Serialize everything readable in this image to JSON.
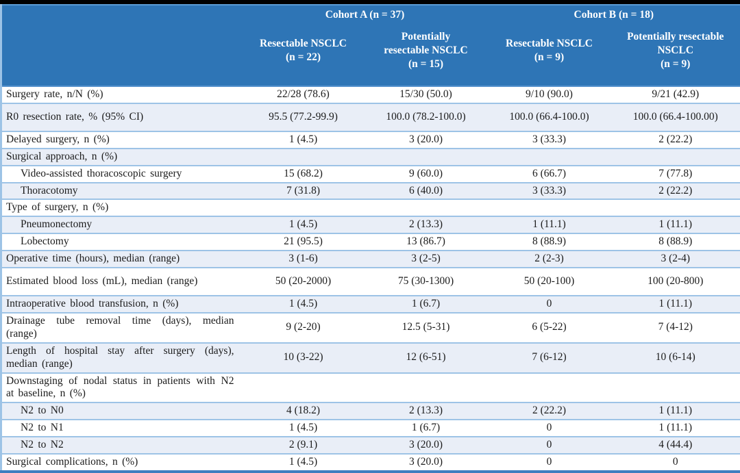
{
  "colors": {
    "header_bg": "#2E75B6",
    "header_highlight": "#5B9BD5",
    "header_underline": "#5793CE",
    "line": "#9DC3E6",
    "stripe_bg": "#E9EEF7",
    "bottom_border": "#3D7EBF"
  },
  "table": {
    "header": {
      "cohort_a": "Cohort A (n = 37)",
      "cohort_b": "Cohort B (n = 18)",
      "columns": [
        "Resectable NSCLC\n(n = 22)",
        "Potentially\nresectable NSCLC\n(n = 15)",
        "Resectable NSCLC\n(n = 9)",
        "Potentially resectable\nNSCLC\n(n = 9)"
      ]
    },
    "rows": [
      {
        "label": "Surgery rate, n/N (%)",
        "indent": false,
        "tall": false,
        "values": [
          "22/28 (78.6)",
          "15/30 (50.0)",
          "9/10 (90.0)",
          "9/21 (42.9)"
        ]
      },
      {
        "label": "R0 resection rate, % (95% CI)",
        "indent": false,
        "tall": true,
        "values": [
          "95.5 (77.2-99.9)",
          "100.0 (78.2-100.0)",
          "100.0 (66.4-100.0)",
          "100.0 (66.4-100.00)"
        ]
      },
      {
        "label": "Delayed surgery, n (%)",
        "indent": false,
        "tall": false,
        "values": [
          "1 (4.5)",
          "3 (20.0)",
          "3 (33.3)",
          "2 (22.2)"
        ]
      },
      {
        "label": "Surgical approach, n (%)",
        "indent": false,
        "tall": false,
        "values": [
          "",
          "",
          "",
          ""
        ]
      },
      {
        "label": "Video-assisted thoracoscopic surgery",
        "indent": true,
        "tall": false,
        "values": [
          "15 (68.2)",
          "9 (60.0)",
          "6 (66.7)",
          "7 (77.8)"
        ]
      },
      {
        "label": "Thoracotomy",
        "indent": true,
        "tall": false,
        "values": [
          "7 (31.8)",
          "6 (40.0)",
          "3 (33.3)",
          "2 (22.2)"
        ]
      },
      {
        "label": "Type of surgery, n (%)",
        "indent": false,
        "tall": false,
        "values": [
          "",
          "",
          "",
          ""
        ]
      },
      {
        "label": "Pneumonectomy",
        "indent": true,
        "tall": false,
        "values": [
          "1 (4.5)",
          "2 (13.3)",
          "1 (11.1)",
          "1 (11.1)"
        ]
      },
      {
        "label": "Lobectomy",
        "indent": true,
        "tall": false,
        "values": [
          "21 (95.5)",
          "13 (86.7)",
          "8 (88.9)",
          "8 (88.9)"
        ]
      },
      {
        "label": "Operative time (hours), median (range)",
        "indent": false,
        "tall": false,
        "values": [
          "3 (1-6)",
          "3 (2-5)",
          "2 (2-3)",
          "3 (2-4)"
        ]
      },
      {
        "label": "Estimated blood loss (mL), median (range)",
        "indent": false,
        "tall": true,
        "values": [
          "50 (20-2000)",
          "75 (30-1300)",
          "50 (20-100)",
          "100 (20-800)"
        ]
      },
      {
        "label": "Intraoperative blood transfusion, n (%)",
        "indent": false,
        "tall": false,
        "values": [
          "1 (4.5)",
          "1 (6.7)",
          "0",
          "1 (11.1)"
        ]
      },
      {
        "label": "Drainage tube removal time (days), median (range)",
        "indent": false,
        "tall": false,
        "values": [
          "9 (2-20)",
          "12.5 (5-31)",
          "6 (5-22)",
          "7 (4-12)"
        ]
      },
      {
        "label": "Length of hospital stay after surgery (days), median (range)",
        "indent": false,
        "tall": false,
        "values": [
          "10 (3-22)",
          "12 (6-51)",
          "7 (6-12)",
          "10 (6-14)"
        ]
      },
      {
        "label": "Downstaging of nodal status in patients with N2 at baseline, n (%)",
        "indent": false,
        "tall": false,
        "values": [
          "",
          "",
          "",
          ""
        ]
      },
      {
        "label": "N2 to N0",
        "indent": true,
        "tall": false,
        "values": [
          "4 (18.2)",
          "2 (13.3)",
          "2 (22.2)",
          "1 (11.1)"
        ]
      },
      {
        "label": "N2 to N1",
        "indent": true,
        "tall": false,
        "values": [
          "1 (4.5)",
          "1 (6.7)",
          "0",
          "1 (11.1)"
        ]
      },
      {
        "label": "N2 to N2",
        "indent": true,
        "tall": false,
        "values": [
          "2 (9.1)",
          "3 (20.0)",
          "0",
          "4 (44.4)"
        ]
      },
      {
        "label": "Surgical complications, n (%)",
        "indent": false,
        "tall": false,
        "values": [
          "1 (4.5)",
          "3 (20.0)",
          "0",
          "0"
        ]
      }
    ]
  }
}
